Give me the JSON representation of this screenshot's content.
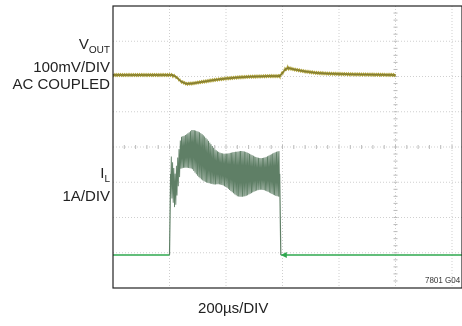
{
  "chart_data": {
    "type": "line",
    "title": "",
    "xlabel": "200µs/DIV",
    "figure_code": "7801 G04",
    "grid": true,
    "divisions": {
      "x": 10,
      "y": 8
    },
    "channels": [
      {
        "name": "VOUT",
        "label_main": "V",
        "label_sub": "OUT",
        "scale": "100mV/DIV",
        "coupling": "AC COUPLED",
        "color": "#a89a2a",
        "unit": "mV",
        "points": [
          [
            0,
            0
          ],
          [
            1.05,
            0
          ],
          [
            1.1,
            -4
          ],
          [
            1.15,
            -10
          ],
          [
            1.2,
            -18
          ],
          [
            1.3,
            -25
          ],
          [
            1.4,
            -24
          ],
          [
            1.6,
            -19
          ],
          [
            1.8,
            -14
          ],
          [
            2.0,
            -10
          ],
          [
            2.2,
            -7
          ],
          [
            2.4,
            -5
          ],
          [
            2.6,
            -4
          ],
          [
            2.8,
            -3
          ],
          [
            2.95,
            -3
          ],
          [
            3.0,
            6
          ],
          [
            3.05,
            16
          ],
          [
            3.1,
            20
          ],
          [
            3.2,
            16
          ],
          [
            3.4,
            10
          ],
          [
            3.6,
            6
          ],
          [
            3.8,
            4
          ],
          [
            4.2,
            2
          ],
          [
            4.6,
            1
          ],
          [
            5.0,
            0
          ]
        ]
      },
      {
        "name": "IL",
        "label_main": "I",
        "label_sub": "L",
        "scale": "1A/DIV",
        "color": "#2fa84f",
        "unit": "A",
        "points": [
          [
            0,
            0
          ],
          [
            1.0,
            0
          ],
          [
            1.02,
            2.3
          ],
          [
            1.1,
            1.8
          ],
          [
            1.2,
            2.9
          ],
          [
            1.4,
            3.0
          ],
          [
            1.8,
            2.5
          ],
          [
            2.2,
            2.3
          ],
          [
            2.6,
            2.3
          ],
          [
            2.95,
            2.3
          ],
          [
            2.97,
            0
          ],
          [
            5.0,
            0
          ]
        ]
      }
    ]
  }
}
